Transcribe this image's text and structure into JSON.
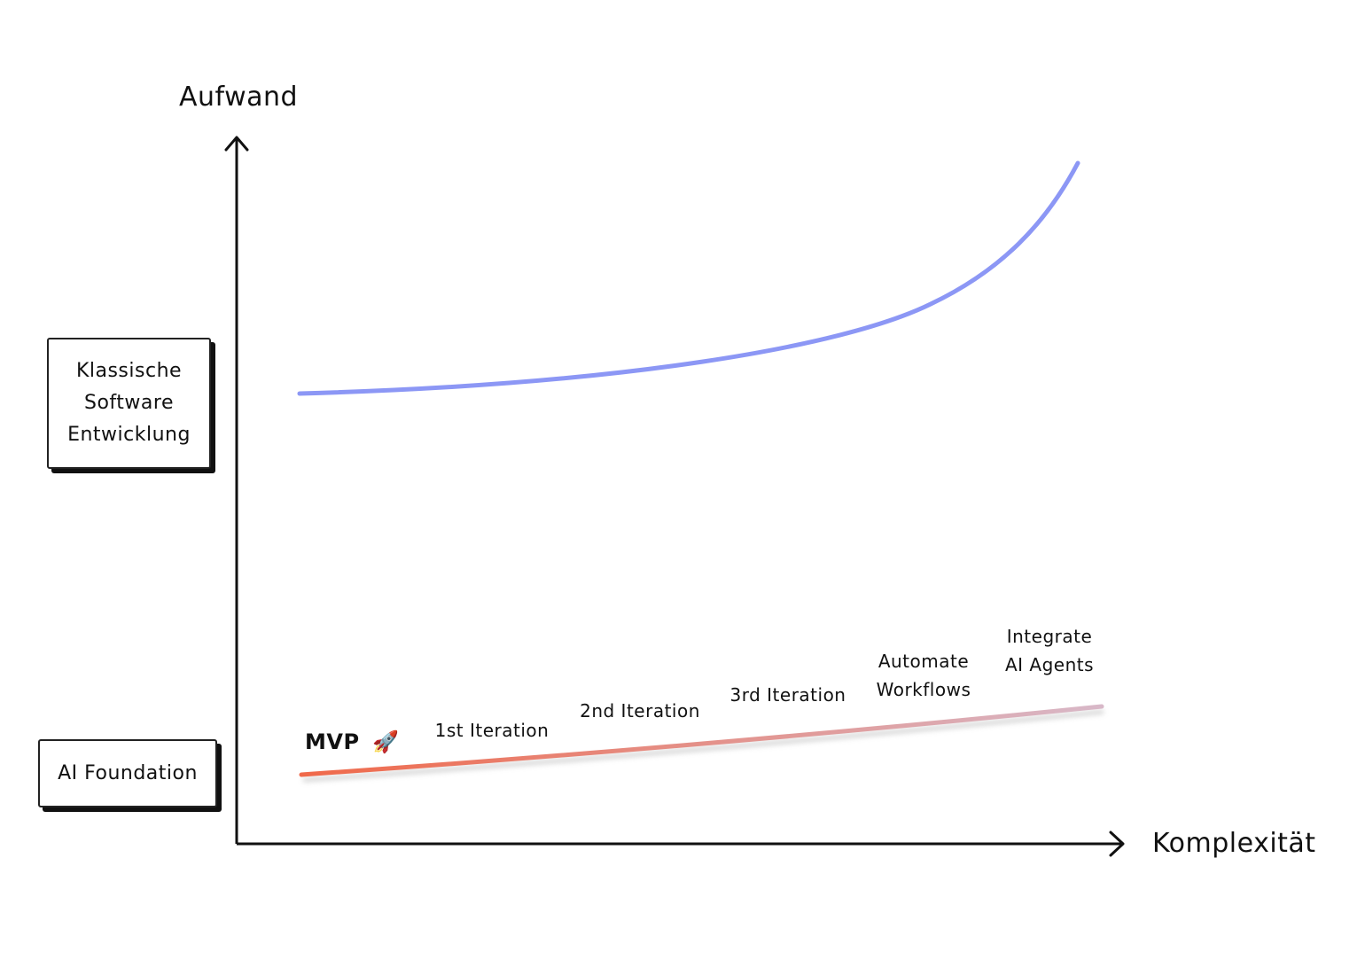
{
  "axes": {
    "y_label": "Aufwand",
    "x_label": "Komplexität"
  },
  "boxes": {
    "classic": "Klassische\nSoftware\nEntwicklung",
    "foundation": "AI Foundation"
  },
  "milestones": {
    "mvp": "MVP",
    "mvp_icon": "🚀",
    "iter1": "1st Iteration",
    "iter2": "2nd Iteration",
    "iter3": "3rd Iteration",
    "automate": "Automate\nWorkflows",
    "agents": "Integrate\nAI Agents"
  },
  "colors": {
    "classic_curve": "#8C97F5",
    "ai_curve_start": "#F0694A",
    "ai_curve_end": "#D8B8C8",
    "axis": "#111111"
  },
  "icons": [
    "up-arrow-icon",
    "right-arrow-icon",
    "rocket-icon"
  ]
}
